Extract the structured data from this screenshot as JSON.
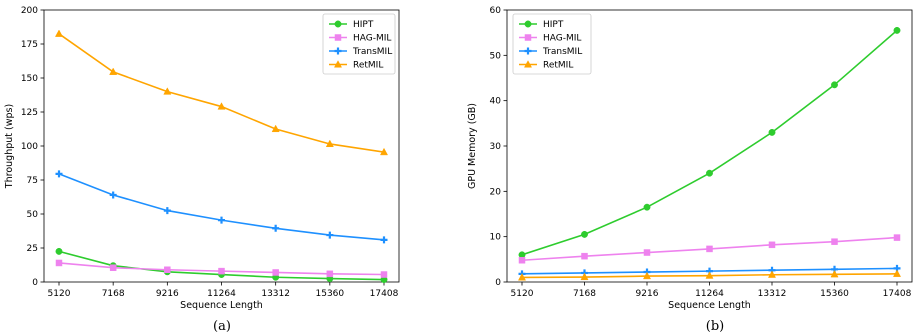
{
  "chart_data": [
    {
      "type": "line",
      "caption": "(a)",
      "xlabel": "Sequence Length",
      "ylabel": "Throughput (wps)",
      "categories": [
        "5120",
        "7168",
        "9216",
        "11264",
        "13312",
        "15360",
        "17408"
      ],
      "ylim": [
        0,
        200
      ],
      "yticks": [
        0,
        25,
        50,
        75,
        100,
        125,
        150,
        175,
        200
      ],
      "grid": false,
      "legend_position": "top-right",
      "series": [
        {
          "name": "HIPT",
          "color": "#2ecc2e",
          "marker": "circle",
          "values": [
            22.5,
            12,
            7.5,
            5.5,
            3.5,
            2.5,
            1.8
          ]
        },
        {
          "name": "HAG-MIL",
          "color": "#ee82ee",
          "marker": "square",
          "values": [
            14,
            10.5,
            9,
            8,
            7,
            6,
            5.5
          ]
        },
        {
          "name": "TransMIL",
          "color": "#1e90ff",
          "marker": "plus",
          "values": [
            79.5,
            64,
            52.5,
            45.5,
            39.5,
            34.5,
            31
          ]
        },
        {
          "name": "RetMIL",
          "color": "#ffa500",
          "marker": "triangle",
          "values": [
            182.5,
            154.5,
            140,
            129,
            112.5,
            101.5,
            95.5
          ]
        }
      ]
    },
    {
      "type": "line",
      "caption": "(b)",
      "xlabel": "Sequence Length",
      "ylabel": "GPU Memory (GB)",
      "categories": [
        "5120",
        "7168",
        "9216",
        "11264",
        "13312",
        "15360",
        "17408"
      ],
      "ylim": [
        0,
        60
      ],
      "yticks": [
        0,
        10,
        20,
        30,
        40,
        50,
        60
      ],
      "grid": false,
      "legend_position": "top-left",
      "series": [
        {
          "name": "HIPT",
          "color": "#2ecc2e",
          "marker": "circle",
          "values": [
            6,
            10.5,
            16.5,
            24,
            33,
            43.5,
            55.5
          ]
        },
        {
          "name": "HAG-MIL",
          "color": "#ee82ee",
          "marker": "square",
          "values": [
            4.8,
            5.7,
            6.5,
            7.3,
            8.2,
            8.9,
            9.8
          ]
        },
        {
          "name": "TransMIL",
          "color": "#1e90ff",
          "marker": "plus",
          "values": [
            1.8,
            2.0,
            2.2,
            2.4,
            2.6,
            2.8,
            3.0
          ]
        },
        {
          "name": "RetMIL",
          "color": "#ffa500",
          "marker": "triangle",
          "values": [
            1.0,
            1.1,
            1.3,
            1.4,
            1.6,
            1.7,
            1.8
          ]
        }
      ]
    }
  ]
}
